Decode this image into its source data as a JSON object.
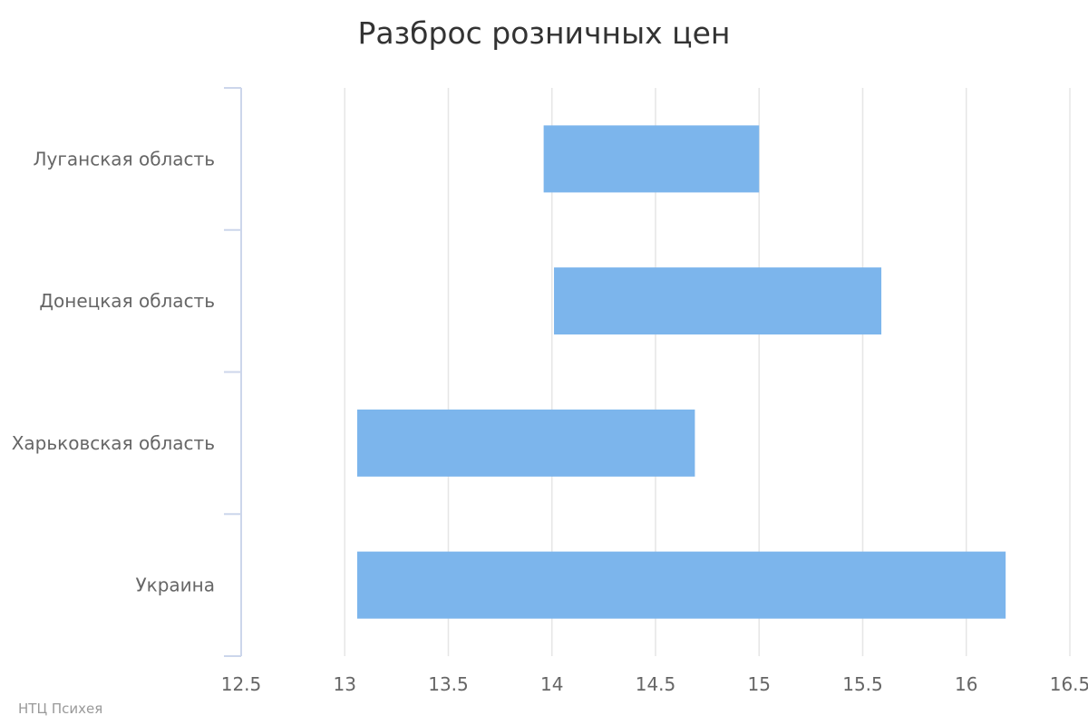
{
  "chart_data": {
    "type": "bar",
    "orientation": "horizontal",
    "title": "Разброс розничных цен",
    "categories": [
      "Луганская область",
      "Донецкая область",
      "Харьковская область",
      "Украина"
    ],
    "series": [
      {
        "ranges": [
          [
            13.96,
            15.0
          ],
          [
            14.01,
            15.59
          ],
          [
            13.06,
            14.69
          ],
          [
            13.06,
            16.19
          ]
        ]
      }
    ],
    "xlim": [
      12.5,
      16.5
    ],
    "ticks": [
      "12.5",
      "13",
      "13.5",
      "14",
      "14.5",
      "15",
      "15.5",
      "16",
      "16.5"
    ],
    "grid": true,
    "legend": "none",
    "color": "#7cb5ec"
  },
  "credits": "НТЦ Психея"
}
